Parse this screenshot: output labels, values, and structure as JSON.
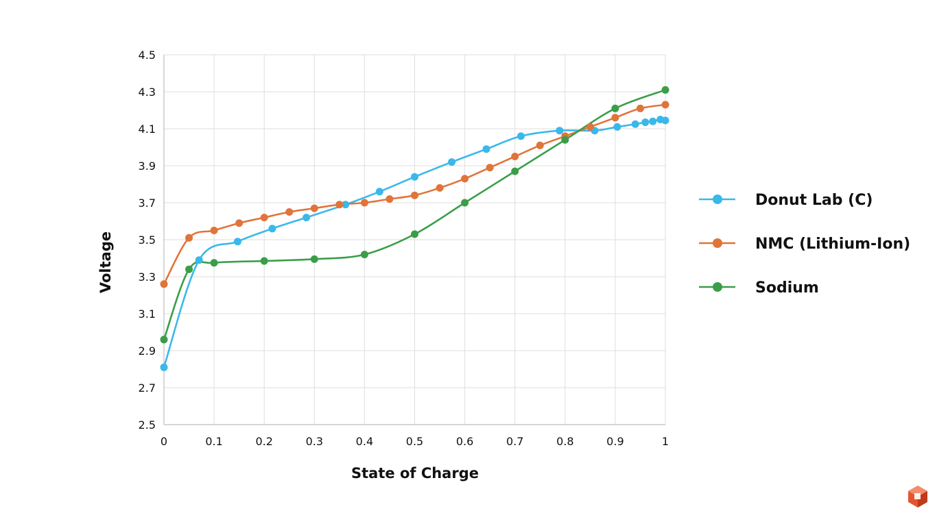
{
  "chart_data": {
    "type": "line",
    "title": "",
    "xlabel": "State of Charge",
    "ylabel": "Voltage",
    "xlim": [
      0,
      1
    ],
    "ylim": [
      2.5,
      4.5
    ],
    "x_ticks": [
      "0",
      "0.1",
      "0.2",
      "0.3",
      "0.4",
      "0.5",
      "0.6",
      "0.7",
      "0.8",
      "0.9",
      "1"
    ],
    "y_ticks": [
      "2.5",
      "2.7",
      "2.9",
      "3.1",
      "3.3",
      "3.5",
      "3.7",
      "3.9",
      "4.1",
      "4.3",
      "4.5"
    ],
    "grid": true,
    "legend": "right",
    "series": [
      {
        "name": "Donut Lab (C)",
        "color": "#3ab8ea",
        "points": [
          [
            0.0,
            2.81
          ],
          [
            0.07,
            3.39
          ],
          [
            0.147,
            3.49
          ],
          [
            0.216,
            3.56
          ],
          [
            0.284,
            3.62
          ],
          [
            0.362,
            3.69
          ],
          [
            0.43,
            3.76
          ],
          [
            0.5,
            3.84
          ],
          [
            0.574,
            3.92
          ],
          [
            0.643,
            3.99
          ],
          [
            0.712,
            4.06
          ],
          [
            0.789,
            4.09
          ],
          [
            0.859,
            4.09
          ],
          [
            0.904,
            4.11
          ],
          [
            0.94,
            4.125
          ],
          [
            0.96,
            4.135
          ],
          [
            0.975,
            4.14
          ],
          [
            0.99,
            4.15
          ],
          [
            1.0,
            4.145
          ]
        ]
      },
      {
        "name": "NMC (Lithium-Ion)",
        "color": "#e0743a",
        "points": [
          [
            0.0,
            3.26
          ],
          [
            0.05,
            3.51
          ],
          [
            0.1,
            3.55
          ],
          [
            0.15,
            3.59
          ],
          [
            0.2,
            3.62
          ],
          [
            0.25,
            3.65
          ],
          [
            0.3,
            3.67
          ],
          [
            0.35,
            3.69
          ],
          [
            0.4,
            3.7
          ],
          [
            0.45,
            3.72
          ],
          [
            0.5,
            3.74
          ],
          [
            0.55,
            3.78
          ],
          [
            0.6,
            3.83
          ],
          [
            0.65,
            3.89
          ],
          [
            0.7,
            3.95
          ],
          [
            0.75,
            4.01
          ],
          [
            0.8,
            4.06
          ],
          [
            0.85,
            4.11
          ],
          [
            0.9,
            4.16
          ],
          [
            0.95,
            4.21
          ],
          [
            1.0,
            4.23
          ]
        ]
      },
      {
        "name": "Sodium",
        "color": "#3a9e48",
        "points": [
          [
            0.0,
            2.96
          ],
          [
            0.05,
            3.34
          ],
          [
            0.1,
            3.375
          ],
          [
            0.2,
            3.385
          ],
          [
            0.3,
            3.395
          ],
          [
            0.4,
            3.42
          ],
          [
            0.5,
            3.53
          ],
          [
            0.6,
            3.7
          ],
          [
            0.7,
            3.87
          ],
          [
            0.8,
            4.04
          ],
          [
            0.9,
            4.21
          ],
          [
            1.0,
            4.31
          ]
        ]
      }
    ]
  },
  "legend": {
    "items": [
      "Donut Lab (C)",
      "NMC (Lithium-Ion)",
      "Sodium"
    ]
  },
  "logo": {
    "icon": "brand-logo-icon",
    "colors": [
      "#e4572e",
      "#f28c6a",
      "#c03a1c"
    ]
  }
}
